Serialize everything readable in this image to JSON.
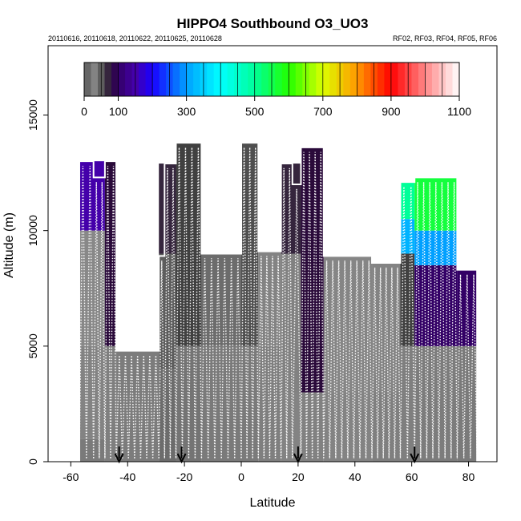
{
  "chart_data": {
    "type": "heatmap",
    "title": "HIPPO4 Southbound O3_UO3",
    "subtitle_left": "20110616, 20110618, 20110622, 20110625, 20110628",
    "subtitle_right": "RF02, RF03, RF04, RF05, RF06",
    "xlabel": "Latitude",
    "ylabel": "Altitude (m)",
    "xlim": [
      -68,
      90
    ],
    "ylim": [
      0,
      18000
    ],
    "xticks": [
      -60,
      -40,
      -20,
      0,
      20,
      40,
      60,
      80
    ],
    "xtick_labels": [
      "-60",
      "-40",
      "-20",
      "0",
      "20",
      "40",
      "60",
      "80"
    ],
    "yticks": [
      0,
      5000,
      10000,
      15000
    ],
    "ytick_labels": [
      "0",
      "5000",
      "10000",
      "15000"
    ],
    "colorbar": {
      "min": 0,
      "max": 1100,
      "ticks": [
        0,
        100,
        300,
        500,
        700,
        900,
        1100
      ],
      "tick_labels": [
        "0",
        "100",
        "300",
        "500",
        "700",
        "900",
        "1100"
      ]
    },
    "arrow_latitudes": [
      -43,
      -21,
      20,
      61
    ],
    "envelope": [
      {
        "lat_start": -57,
        "lat_end": -52,
        "top_alt": 13000
      },
      {
        "lat_start": -52,
        "lat_end": -48,
        "top_alt": 12300
      },
      {
        "lat_start": -48,
        "lat_end": -44,
        "top_alt": 13000
      },
      {
        "lat_start": -44,
        "lat_end": -29,
        "top_alt": 4800
      },
      {
        "lat_start": -29,
        "lat_end": -27,
        "top_alt": 8900
      },
      {
        "lat_start": -27,
        "lat_end": -23,
        "top_alt": 12900
      },
      {
        "lat_start": -23,
        "lat_end": -14,
        "top_alt": 13800
      },
      {
        "lat_start": -14,
        "lat_end": 0,
        "top_alt": 9000
      },
      {
        "lat_start": 0,
        "lat_end": 6,
        "top_alt": 13800
      },
      {
        "lat_start": 6,
        "lat_end": 14,
        "top_alt": 9100
      },
      {
        "lat_start": 14,
        "lat_end": 18,
        "top_alt": 12900
      },
      {
        "lat_start": 18,
        "lat_end": 21,
        "top_alt": 12000
      },
      {
        "lat_start": 21,
        "lat_end": 29,
        "top_alt": 13600
      },
      {
        "lat_start": 29,
        "lat_end": 46,
        "top_alt": 8900
      },
      {
        "lat_start": 46,
        "lat_end": 56,
        "top_alt": 8600
      },
      {
        "lat_start": 56,
        "lat_end": 61,
        "top_alt": 12100
      },
      {
        "lat_start": 61,
        "lat_end": 76,
        "top_alt": 12300
      },
      {
        "lat_start": 76,
        "lat_end": 83,
        "top_alt": 8300
      }
    ],
    "o3_profiles": [
      {
        "lat_start": -57,
        "lat_end": -48,
        "levels": [
          {
            "bottom": 0,
            "top": 1000,
            "o3": 40
          },
          {
            "bottom": 1000,
            "top": 5000,
            "o3": 30
          },
          {
            "bottom": 5000,
            "top": 10000,
            "o3": 25
          },
          {
            "bottom": 10000,
            "top": 13000,
            "o3": 150
          }
        ]
      },
      {
        "lat_start": -48,
        "lat_end": -44,
        "levels": [
          {
            "bottom": 0,
            "top": 5000,
            "o3": 35
          },
          {
            "bottom": 5000,
            "top": 13000,
            "o3": 80
          }
        ]
      },
      {
        "lat_start": -44,
        "lat_end": -29,
        "levels": [
          {
            "bottom": 0,
            "top": 4800,
            "o3": 38
          }
        ]
      },
      {
        "lat_start": -29,
        "lat_end": -23,
        "levels": [
          {
            "bottom": 0,
            "top": 4000,
            "o3": 45
          },
          {
            "bottom": 4000,
            "top": 9000,
            "o3": 50
          },
          {
            "bottom": 9000,
            "top": 12900,
            "o3": 70
          }
        ]
      },
      {
        "lat_start": -23,
        "lat_end": -14,
        "levels": [
          {
            "bottom": 0,
            "top": 5000,
            "o3": 42
          },
          {
            "bottom": 5000,
            "top": 13800,
            "o3": 60
          }
        ]
      },
      {
        "lat_start": -14,
        "lat_end": 0,
        "levels": [
          {
            "bottom": 0,
            "top": 5000,
            "o3": 40
          },
          {
            "bottom": 5000,
            "top": 9000,
            "o3": 45
          }
        ]
      },
      {
        "lat_start": 0,
        "lat_end": 6,
        "levels": [
          {
            "bottom": 0,
            "top": 5000,
            "o3": 40
          },
          {
            "bottom": 5000,
            "top": 13800,
            "o3": 55
          }
        ]
      },
      {
        "lat_start": 6,
        "lat_end": 14,
        "levels": [
          {
            "bottom": 0,
            "top": 5000,
            "o3": 35
          },
          {
            "bottom": 5000,
            "top": 9100,
            "o3": 30
          }
        ]
      },
      {
        "lat_start": 14,
        "lat_end": 21,
        "levels": [
          {
            "bottom": 0,
            "top": 3000,
            "o3": 30
          },
          {
            "bottom": 3000,
            "top": 9000,
            "o3": 22
          },
          {
            "bottom": 9000,
            "top": 12900,
            "o3": 70
          }
        ]
      },
      {
        "lat_start": 21,
        "lat_end": 29,
        "levels": [
          {
            "bottom": 0,
            "top": 3000,
            "o3": 32
          },
          {
            "bottom": 3000,
            "top": 13600,
            "o3": 80
          }
        ]
      },
      {
        "lat_start": 29,
        "lat_end": 46,
        "levels": [
          {
            "bottom": 0,
            "top": 3000,
            "o3": 30
          },
          {
            "bottom": 3000,
            "top": 8900,
            "o3": 28
          }
        ]
      },
      {
        "lat_start": 46,
        "lat_end": 56,
        "levels": [
          {
            "bottom": 0,
            "top": 3000,
            "o3": 35
          },
          {
            "bottom": 3000,
            "top": 8600,
            "o3": 30
          }
        ]
      },
      {
        "lat_start": 56,
        "lat_end": 61,
        "levels": [
          {
            "bottom": 0,
            "top": 5000,
            "o3": 35
          },
          {
            "bottom": 5000,
            "top": 9000,
            "o3": 60
          },
          {
            "bottom": 9000,
            "top": 10500,
            "o3": 320
          },
          {
            "bottom": 10500,
            "top": 12100,
            "o3": 500
          }
        ]
      },
      {
        "lat_start": 61,
        "lat_end": 76,
        "levels": [
          {
            "bottom": 0,
            "top": 5000,
            "o3": 38
          },
          {
            "bottom": 5000,
            "top": 8500,
            "o3": 100
          },
          {
            "bottom": 8500,
            "top": 10000,
            "o3": 300
          },
          {
            "bottom": 10000,
            "top": 12300,
            "o3": 560
          }
        ]
      },
      {
        "lat_start": 76,
        "lat_end": 83,
        "levels": [
          {
            "bottom": 0,
            "top": 5000,
            "o3": 40
          },
          {
            "bottom": 5000,
            "top": 8300,
            "o3": 100
          }
        ]
      }
    ]
  }
}
